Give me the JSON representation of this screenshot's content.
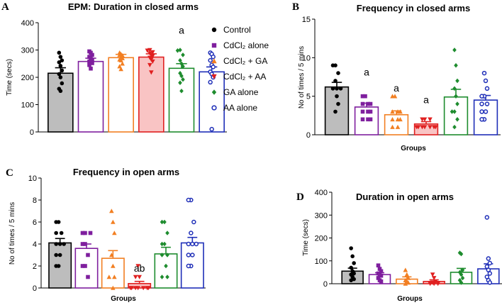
{
  "legend": {
    "items": [
      {
        "label": "Control",
        "color": "#000000",
        "marker": "circle"
      },
      {
        "label": "CdCl₂ alone",
        "color": "#7f1f9e",
        "marker": "square"
      },
      {
        "label": "CdCl₂ + GA",
        "color": "#f27f22",
        "marker": "triangle"
      },
      {
        "label": "CdCl₂ + AA",
        "color": "#e02020",
        "marker": "tridown"
      },
      {
        "label": "GA alone",
        "color": "#1e8c2e",
        "marker": "diamond"
      },
      {
        "label": "AA alone",
        "color": "#1f2fb8",
        "marker": "ocircle"
      }
    ]
  },
  "chart_data": [
    {
      "letter": "A",
      "type": "bar",
      "title": "EPM: Duration in closed arms",
      "xlabel": "",
      "ylabel": "Time (secs)",
      "ylim": [
        0,
        400
      ],
      "yticks": [
        0,
        100,
        200,
        300,
        400
      ],
      "categories": [
        "Control",
        "CdCl2 alone",
        "CdCl2 + GA",
        "CdCl2 + AA",
        "GA alone",
        "AA alone"
      ],
      "values": [
        215,
        258,
        272,
        274,
        233,
        220
      ],
      "errors": [
        20,
        12,
        12,
        12,
        17,
        18
      ],
      "annotations": [
        {
          "group": 4,
          "text": "a",
          "y": 360
        }
      ],
      "points": [
        [
          290,
          275,
          262,
          255,
          242,
          225,
          212,
          200,
          178,
          158,
          150
        ],
        [
          295,
          290,
          282,
          275,
          270,
          262,
          258,
          255,
          252,
          245,
          232
        ],
        [
          290,
          285,
          280,
          282,
          275,
          270,
          265,
          262,
          250,
          240,
          230
        ],
        [
          300,
          298,
          292,
          288,
          283,
          278,
          272,
          265,
          258,
          245,
          218
        ],
        [
          300,
          298,
          282,
          262,
          250,
          240,
          215,
          205,
          192,
          180,
          150
        ],
        [
          290,
          285,
          275,
          262,
          245,
          238,
          220,
          212,
          200,
          182,
          10
        ]
      ]
    },
    {
      "letter": "B",
      "type": "bar",
      "title": "Frequency in closed arms",
      "xlabel": "Groups",
      "ylabel": "No of times / 5 mins",
      "ylim": [
        0,
        15
      ],
      "yticks": [
        0,
        5,
        10,
        15
      ],
      "categories": [
        "Control",
        "CdCl2 alone",
        "CdCl2 + GA",
        "CdCl2 + AA",
        "GA alone",
        "AA alone"
      ],
      "values": [
        6.2,
        3.6,
        2.6,
        1.4,
        4.9,
        4.5
      ],
      "errors": [
        0.6,
        0.5,
        0.5,
        0.3,
        1.0,
        0.6
      ],
      "annotations": [
        {
          "group": 1,
          "text": "a",
          "y": 7.7
        },
        {
          "group": 2,
          "text": "a",
          "y": 5.6
        },
        {
          "group": 3,
          "text": "a",
          "y": 4.1
        }
      ],
      "points": [
        [
          9,
          9,
          8,
          7,
          6,
          6,
          6,
          5,
          4,
          3
        ],
        [
          5,
          5,
          4,
          4,
          4,
          3,
          3,
          3,
          2,
          2,
          2
        ],
        [
          5,
          5,
          3,
          3,
          3,
          2,
          2,
          2,
          1,
          1
        ],
        [
          2,
          2,
          2,
          1,
          1,
          1,
          1,
          1,
          1,
          1
        ],
        [
          11,
          9,
          7,
          6,
          5,
          4,
          3,
          3,
          2,
          1
        ],
        [
          8,
          7,
          6,
          5,
          5,
          4,
          4,
          3,
          3,
          2,
          2
        ]
      ]
    },
    {
      "letter": "C",
      "type": "bar",
      "title": "Frequency in open arms",
      "xlabel": "Groups",
      "ylabel": "No of times / 5 mins",
      "ylim": [
        0,
        10
      ],
      "yticks": [
        0,
        2,
        4,
        6,
        8,
        10
      ],
      "categories": [
        "Control",
        "CdCl2 alone",
        "CdCl2 + GA",
        "CdCl2 + AA",
        "GA alone",
        "AA alone"
      ],
      "values": [
        4.1,
        3.6,
        2.7,
        0.4,
        3.1,
        4.1
      ],
      "errors": [
        0.4,
        0.4,
        0.7,
        0.2,
        0.6,
        0.5
      ],
      "annotations": [
        {
          "group": 3,
          "text": "ab",
          "y": 1.5
        }
      ],
      "points": [
        [
          6,
          6,
          5,
          5,
          4,
          4,
          4,
          3,
          3,
          2,
          2
        ],
        [
          5,
          5,
          5,
          4,
          4,
          3,
          2,
          2,
          1
        ],
        [
          7,
          6,
          5,
          3,
          2,
          1,
          1,
          0
        ],
        [
          2,
          1,
          1,
          0,
          0,
          0,
          0,
          0,
          0,
          0
        ],
        [
          6,
          6,
          5,
          4,
          4,
          3,
          3,
          2,
          1,
          1
        ],
        [
          8,
          8,
          6,
          5,
          4,
          4,
          4,
          3,
          3,
          2,
          2
        ]
      ]
    },
    {
      "letter": "D",
      "type": "bar",
      "title": "Duration in open arms",
      "xlabel": "Groups",
      "ylabel": "Time (secs)",
      "ylim": [
        0,
        400
      ],
      "yticks": [
        0,
        100,
        200,
        300,
        400
      ],
      "categories": [
        "Control",
        "CdCl2 alone",
        "CdCl2 + GA",
        "CdCl2 + AA",
        "GA alone",
        "AA alone"
      ],
      "values": [
        55,
        40,
        20,
        10,
        50,
        65
      ],
      "errors": [
        13,
        8,
        10,
        7,
        17,
        22
      ],
      "annotations": [],
      "points": [
        [
          155,
          120,
          90,
          70,
          55,
          45,
          40,
          30,
          20,
          15
        ],
        [
          80,
          65,
          55,
          45,
          40,
          35,
          25,
          15,
          10
        ],
        [
          60,
          40,
          25,
          15,
          10,
          5,
          0
        ],
        [
          40,
          25,
          10,
          5,
          0,
          0,
          0
        ],
        [
          135,
          130,
          60,
          50,
          40,
          25,
          15,
          5
        ],
        [
          290,
          110,
          90,
          75,
          60,
          45,
          30,
          15,
          5
        ]
      ]
    }
  ]
}
